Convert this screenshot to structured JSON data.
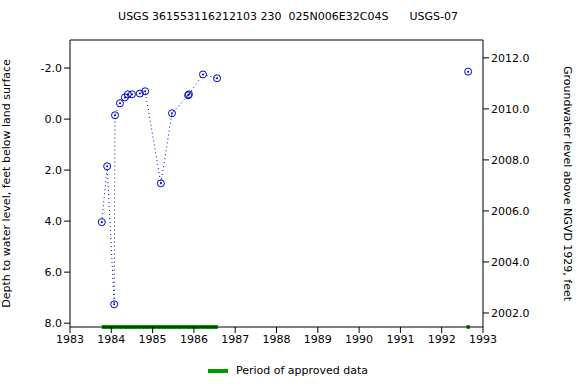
{
  "chart_data": {
    "type": "line",
    "title": "USGS 361553116212103 230  025N006E32C04S      USGS-07",
    "y_label": "Depth to water level, feet below land surface",
    "y2_label": "Groundwater level above NGVD 1929, feet",
    "x": [
      1983.77,
      1983.9,
      1984.07,
      1984.09,
      1984.21,
      1984.33,
      1984.4,
      1984.5,
      1984.69,
      1984.82,
      1985.2,
      1985.47,
      1985.86,
      1985.88,
      1986.22,
      1986.56,
      1992.64,
      1992.64
    ],
    "values": [
      4.04,
      1.85,
      7.26,
      -0.15,
      -0.62,
      -0.85,
      -0.97,
      -0.97,
      -1.0,
      -1.09,
      2.52,
      -0.23,
      -0.93,
      -0.97,
      -1.75,
      -1.6,
      null,
      -1.86
    ],
    "color": "#0000cc",
    "marker": "circle",
    "line_style": "dotted",
    "xlim": [
      1983,
      1993
    ],
    "xticks": [
      1983,
      1984,
      1985,
      1986,
      1987,
      1988,
      1989,
      1990,
      1991,
      1992,
      1993
    ],
    "ylim": [
      -3.1,
      8.15
    ],
    "yticks": [
      {
        "value": -2,
        "label": "-2.0"
      },
      {
        "value": 0,
        "label": "0.0"
      },
      {
        "value": 2,
        "label": "2.0"
      },
      {
        "value": 4,
        "label": "4.0"
      },
      {
        "value": 6,
        "label": "6.0"
      },
      {
        "value": 8,
        "label": "8.0"
      }
    ],
    "y2lim": [
      2001.45,
      2012.7
    ],
    "y2ticks": [
      {
        "value": 2002,
        "label": "2002.0"
      },
      {
        "value": 2004,
        "label": "2004.0"
      },
      {
        "value": 2006,
        "label": "2006.0"
      },
      {
        "value": 2008,
        "label": "2008.0"
      },
      {
        "value": 2010,
        "label": "2010.0"
      },
      {
        "value": 2012,
        "label": "2012.0"
      }
    ],
    "approved_periods": {
      "name": "Period of approved data",
      "color": "#009900",
      "ranges": [
        [
          1983.77,
          1986.58
        ],
        [
          1992.6,
          1992.68
        ]
      ]
    },
    "legend": "bottom"
  }
}
